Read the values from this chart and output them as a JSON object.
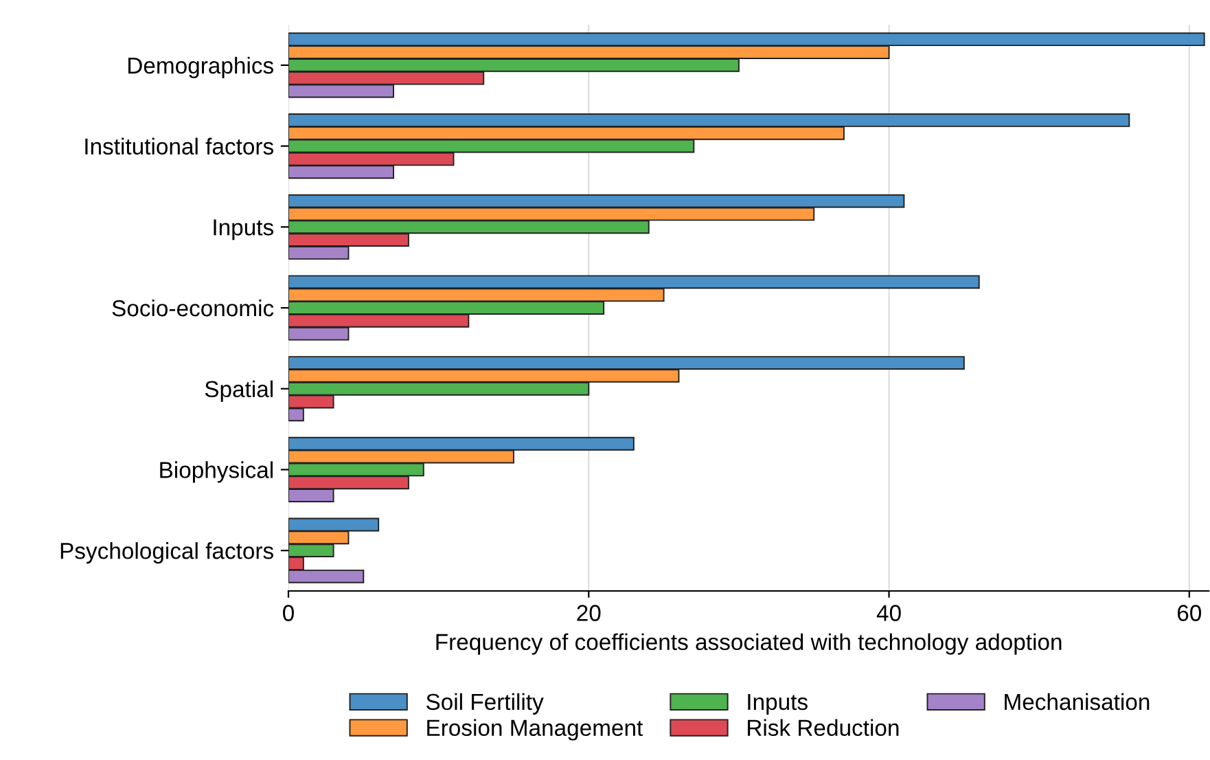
{
  "chart_data": {
    "type": "bar",
    "orientation": "horizontal",
    "xlabel": "Frequency of coefficients associated with technology adoption",
    "categories": [
      "Demographics",
      "Institutional factors",
      "Inputs",
      "Socio-economic",
      "Spatial",
      "Biophysical",
      "Psychological factors"
    ],
    "series": [
      {
        "name": "Soil Fertility",
        "color": "#4a8fc6",
        "values": [
          61,
          56,
          41,
          46,
          45,
          23,
          6
        ]
      },
      {
        "name": "Erosion Management",
        "color": "#ff9a40",
        "values": [
          40,
          37,
          35,
          25,
          26,
          15,
          4
        ]
      },
      {
        "name": "Inputs",
        "color": "#4fb350",
        "values": [
          30,
          27,
          24,
          21,
          20,
          9,
          3
        ]
      },
      {
        "name": "Risk Reduction",
        "color": "#dd4a55",
        "values": [
          13,
          11,
          8,
          12,
          3,
          8,
          1
        ]
      },
      {
        "name": "Mechanisation",
        "color": "#a583c9",
        "values": [
          7,
          7,
          4,
          4,
          1,
          3,
          5
        ]
      }
    ],
    "xlim": [
      0,
      61.3
    ],
    "xticks": [
      0,
      20,
      40,
      60
    ],
    "grid": "x",
    "legend": "bottom"
  }
}
